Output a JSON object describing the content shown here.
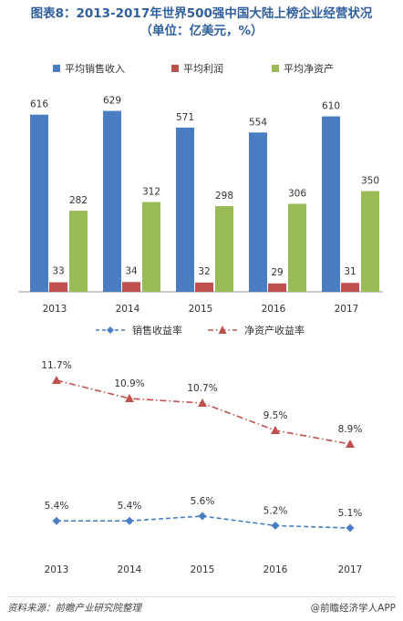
{
  "title_line1": "图表8：2013-2017年世界500强中国大陆上榜企业经营状况",
  "title_line2": "（单位：亿美元，%）",
  "footer": {
    "source": "资料来源：前瞻产业研究院整理",
    "brand": "@前瞻经济学人APP"
  },
  "colors": {
    "sales": "#4a7ec2",
    "profit": "#c0504d",
    "assets": "#9bbb59",
    "sales_margin": "#4a7ec2",
    "roe": "#c0504d",
    "title": "#2f5f9e"
  },
  "chart_data": [
    {
      "type": "bar",
      "categories": [
        "2013",
        "2014",
        "2015",
        "2016",
        "2017"
      ],
      "series": [
        {
          "name": "平均销售收入",
          "values": [
            616,
            629,
            571,
            554,
            610
          ]
        },
        {
          "name": "平均利润",
          "values": [
            33,
            34,
            32,
            29,
            31
          ]
        },
        {
          "name": "平均净资产",
          "values": [
            282,
            312,
            298,
            306,
            350
          ]
        }
      ],
      "ylim": [
        0,
        650
      ],
      "grid": false,
      "legend": "top"
    },
    {
      "type": "line",
      "categories": [
        "2013",
        "2014",
        "2015",
        "2016",
        "2017"
      ],
      "series": [
        {
          "name": "销售收益率",
          "values": [
            5.4,
            5.4,
            5.6,
            5.2,
            5.1
          ],
          "labels": [
            "5.4%",
            "5.4%",
            "5.6%",
            "5.2%",
            "5.1%"
          ],
          "marker": "diamond",
          "style": "dashed"
        },
        {
          "name": "净资产收益率",
          "values": [
            11.7,
            10.9,
            10.7,
            9.5,
            8.9
          ],
          "labels": [
            "11.7%",
            "10.9%",
            "10.7%",
            "9.5%",
            "8.9%"
          ],
          "marker": "triangle",
          "style": "dash-dot"
        }
      ],
      "grid": false,
      "legend": "top"
    }
  ]
}
